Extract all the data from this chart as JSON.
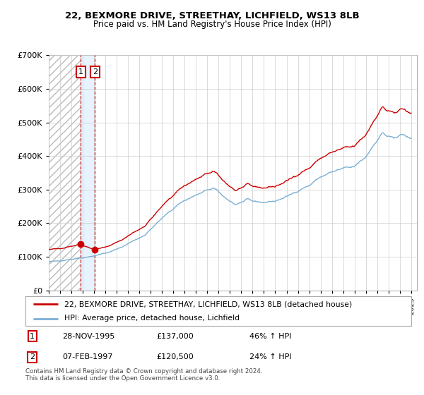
{
  "title1": "22, BEXMORE DRIVE, STREETHAY, LICHFIELD, WS13 8LB",
  "title2": "Price paid vs. HM Land Registry's House Price Index (HPI)",
  "legend1": "22, BEXMORE DRIVE, STREETHAY, LICHFIELD, WS13 8LB (detached house)",
  "legend2": "HPI: Average price, detached house, Lichfield",
  "transaction1_date": "28-NOV-1995",
  "transaction1_price": 137000,
  "transaction1_hpi": "46% ↑ HPI",
  "transaction2_date": "07-FEB-1997",
  "transaction2_price": 120500,
  "transaction2_hpi": "24% ↑ HPI",
  "note": "Contains HM Land Registry data © Crown copyright and database right 2024.\nThis data is licensed under the Open Government Licence v3.0.",
  "red_color": "#cc0000",
  "blue_color": "#7bafd4",
  "bg_highlight": "#ddeeff",
  "ylim": [
    0,
    700000
  ],
  "yticks": [
    0,
    100000,
    200000,
    300000,
    400000,
    500000,
    600000,
    700000
  ],
  "xlim_start": 1993.0,
  "xlim_end": 2025.5,
  "t1_year": 1995,
  "t1_month": 11,
  "t2_year": 1997,
  "t2_month": 2,
  "hpi_anchors_t": [
    1993.0,
    1994.0,
    1995.0,
    1996.0,
    1997.0,
    1998.5,
    1999.5,
    2000.5,
    2001.5,
    2002.5,
    2003.5,
    2004.5,
    2005.0,
    2006.0,
    2007.5,
    2008.5,
    2009.5,
    2010.5,
    2012.0,
    2013.0,
    2014.0,
    2015.0,
    2016.0,
    2017.0,
    2018.0,
    2019.0,
    2020.0,
    2021.0,
    2022.0,
    2022.5,
    2023.0,
    2023.5,
    2024.0,
    2024.5,
    2025.0
  ],
  "hpi_anchors_p": [
    85000,
    88000,
    93000,
    97000,
    103000,
    115000,
    130000,
    148000,
    165000,
    198000,
    230000,
    258000,
    268000,
    283000,
    305000,
    278000,
    255000,
    268000,
    262000,
    266000,
    278000,
    298000,
    312000,
    338000,
    352000,
    362000,
    368000,
    398000,
    450000,
    468000,
    458000,
    452000,
    460000,
    456000,
    458000
  ]
}
